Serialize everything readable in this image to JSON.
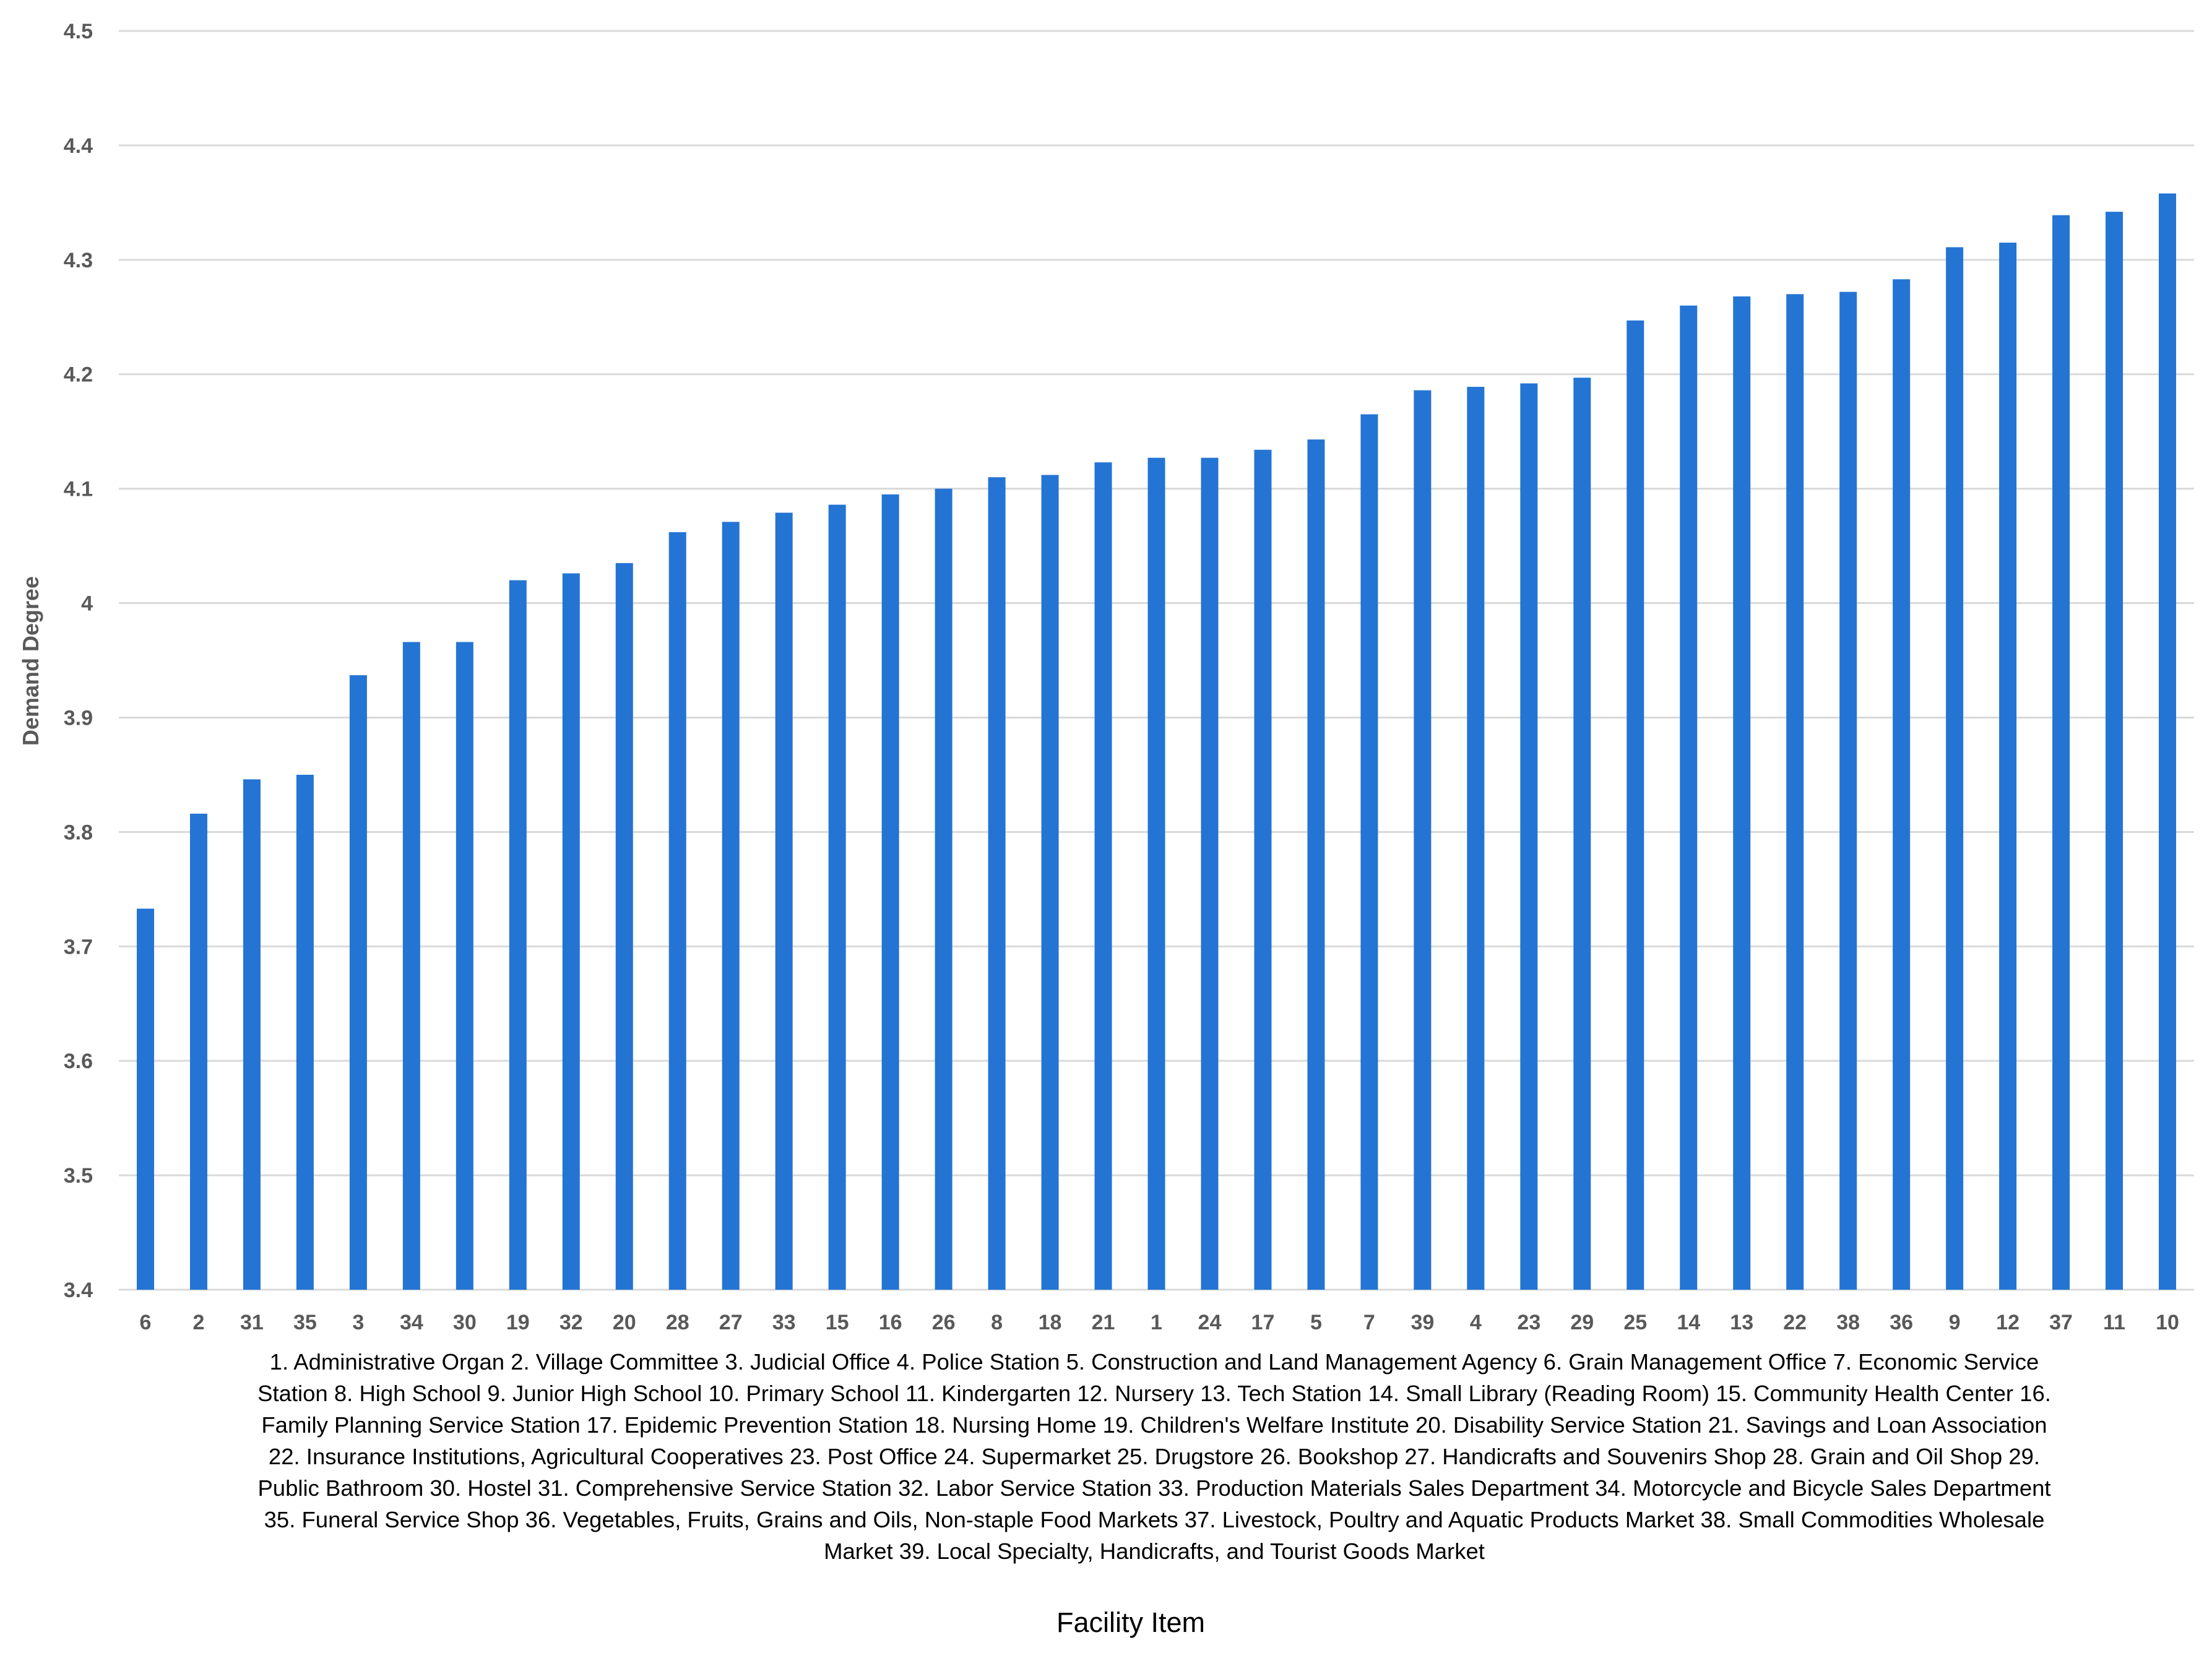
{
  "chart_data": {
    "type": "bar",
    "title": "",
    "xlabel": "Facility Item",
    "ylabel": "Demand Degree",
    "ylim": [
      3.4,
      4.5
    ],
    "yticks": [
      "3.4",
      "3.5",
      "3.6",
      "3.7",
      "3.8",
      "3.9",
      "4",
      "4.1",
      "4.2",
      "4.3",
      "4.4",
      "4.5"
    ],
    "grid": true,
    "legend": "none",
    "bar_color": "#2474d4",
    "categories": [
      "6",
      "2",
      "31",
      "35",
      "3",
      "34",
      "30",
      "19",
      "32",
      "20",
      "28",
      "27",
      "33",
      "15",
      "16",
      "26",
      "8",
      "18",
      "21",
      "1",
      "24",
      "17",
      "5",
      "7",
      "39",
      "4",
      "23",
      "29",
      "25",
      "14",
      "13",
      "22",
      "38",
      "36",
      "9",
      "12",
      "37",
      "11",
      "10"
    ],
    "values": [
      3.733,
      3.816,
      3.846,
      3.85,
      3.937,
      3.966,
      3.966,
      4.02,
      4.026,
      4.035,
      4.062,
      4.071,
      4.079,
      4.086,
      4.095,
      4.1,
      4.11,
      4.112,
      4.123,
      4.127,
      4.127,
      4.134,
      4.143,
      4.165,
      4.186,
      4.189,
      4.192,
      4.197,
      4.247,
      4.26,
      4.268,
      4.27,
      4.272,
      4.283,
      4.311,
      4.315,
      4.339,
      4.342,
      4.358
    ],
    "annotation": "1. Administrative Organ 2. Village Committee 3. Judicial Office 4. Police Station 5. Construction and Land Management Agency 6. Grain Management Office 7. Economic Service Station 8. High School 9. Junior High School 10. Primary School 11. Kindergarten 12. Nursery 13. Tech Station 14. Small Library (Reading Room) 15. Community Health Center 16. Family Planning Service Station 17. Epidemic Prevention Station 18. Nursing Home 19. Children's Welfare Institute 20. Disability Service Station 21. Savings and Loan Association 22. Insurance Institutions, Agricultural Cooperatives 23. Post Office 24. Supermarket 25. Drugstore 26. Bookshop 27. Handicrafts and Souvenirs Shop 28. Grain and Oil Shop 29. Public Bathroom 30. Hostel 31. Comprehensive Service Station 32. Labor Service Station 33. Production Materials Sales Department 34. Motorcycle and Bicycle Sales Department 35. Funeral Service Shop 36. Vegetables, Fruits, Grains and Oils, Non-staple Food Markets 37. Livestock, Poultry and Aquatic Products Market 38. Small Commodities Wholesale Market 39. Local Specialty, Handicrafts, and Tourist Goods Market"
  }
}
